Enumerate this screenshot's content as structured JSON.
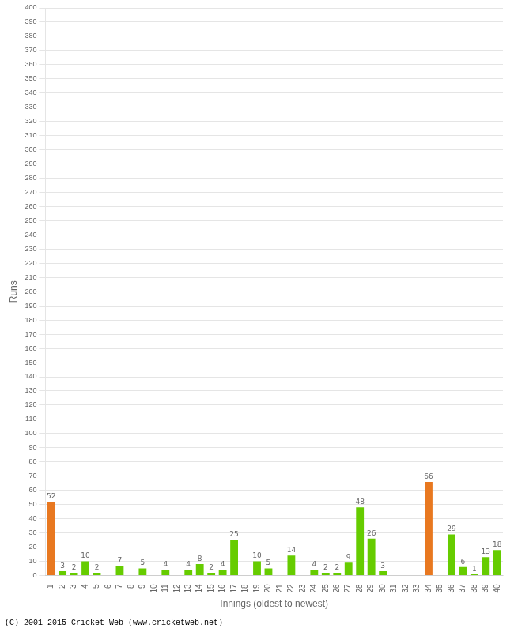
{
  "chart_data": {
    "type": "bar",
    "xlabel": "Innings (oldest to newest)",
    "ylabel": "Runs",
    "annotations": [
      "(C) 2001-2015 Cricket Web (www.cricketweb.net)"
    ],
    "categories": [
      "1",
      "2",
      "3",
      "4",
      "5",
      "6",
      "7",
      "8",
      "9",
      "10",
      "11",
      "12",
      "13",
      "14",
      "15",
      "16",
      "17",
      "18",
      "19",
      "20",
      "21",
      "22",
      "23",
      "24",
      "25",
      "26",
      "27",
      "28",
      "29",
      "30",
      "31",
      "32",
      "33",
      "34",
      "35",
      "36",
      "37",
      "38",
      "39",
      "40"
    ],
    "values": [
      52,
      3,
      2,
      10,
      2,
      0,
      7,
      0,
      5,
      0,
      4,
      0,
      4,
      8,
      2,
      4,
      25,
      0,
      10,
      5,
      0,
      14,
      0,
      4,
      2,
      2,
      9,
      48,
      26,
      3,
      0,
      0,
      0,
      66,
      0,
      29,
      6,
      1,
      13,
      18
    ],
    "value_labels": [
      "52",
      "3",
      "2",
      "10",
      "2",
      null,
      "7",
      null,
      "5",
      null,
      "4",
      null,
      "4",
      "8",
      "2",
      "4",
      "25",
      null,
      "10",
      "5",
      null,
      "14",
      null,
      "4",
      "2",
      "2",
      "9",
      "48",
      "26",
      "3",
      null,
      null,
      null,
      "66",
      null,
      "29",
      "6",
      "1",
      "13",
      "18"
    ],
    "colors": [
      "#e87820",
      "#66cc00",
      "#66cc00",
      "#66cc00",
      "#66cc00",
      "#66cc00",
      "#66cc00",
      "#66cc00",
      "#66cc00",
      "#66cc00",
      "#66cc00",
      "#66cc00",
      "#66cc00",
      "#66cc00",
      "#66cc00",
      "#66cc00",
      "#66cc00",
      "#66cc00",
      "#66cc00",
      "#66cc00",
      "#66cc00",
      "#66cc00",
      "#66cc00",
      "#66cc00",
      "#66cc00",
      "#66cc00",
      "#66cc00",
      "#66cc00",
      "#66cc00",
      "#66cc00",
      "#66cc00",
      "#66cc00",
      "#66cc00",
      "#e87820",
      "#66cc00",
      "#66cc00",
      "#66cc00",
      "#66cc00",
      "#66cc00",
      "#66cc00"
    ],
    "ylim": [
      0,
      400
    ],
    "yticks": [
      0,
      10,
      20,
      30,
      40,
      50,
      60,
      70,
      80,
      90,
      100,
      110,
      120,
      130,
      140,
      150,
      160,
      170,
      180,
      190,
      200,
      210,
      220,
      230,
      240,
      250,
      260,
      270,
      280,
      290,
      300,
      310,
      320,
      330,
      340,
      350,
      360,
      370,
      380,
      390,
      400
    ],
    "grid": true,
    "data_labels": true
  }
}
